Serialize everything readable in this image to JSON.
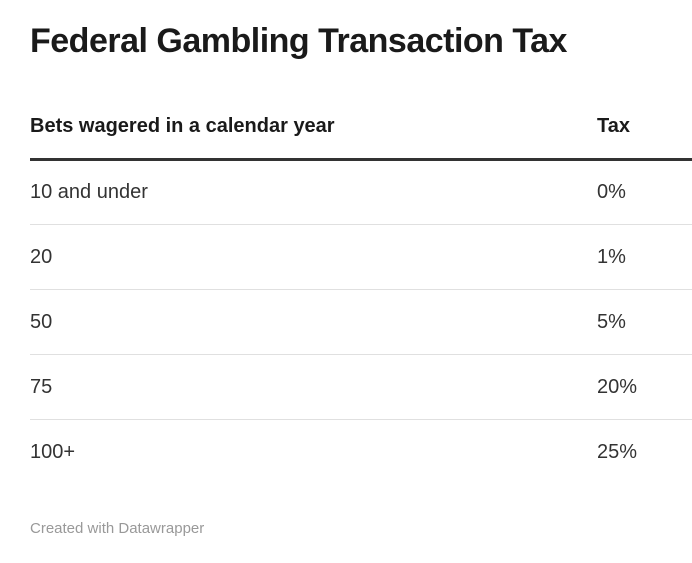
{
  "chart_data": {
    "type": "table",
    "title": "Federal Gambling Transaction Tax",
    "columns": [
      "Bets wagered in a calendar year",
      "Tax"
    ],
    "rows": [
      [
        "10 and under",
        "0%"
      ],
      [
        "20",
        "1%"
      ],
      [
        "50",
        "5%"
      ],
      [
        "75",
        "20%"
      ],
      [
        "100+",
        "25%"
      ]
    ],
    "layout_hints": {
      "tax_column_alignment": "left",
      "header_rule": "thick",
      "row_dividers": true,
      "last_row_divider": false
    }
  },
  "footer": {
    "attribution": "Created with Datawrapper"
  },
  "colors": {
    "background": "#ffffff",
    "title_text": "#1a1a1a",
    "header_text": "#1a1a1a",
    "body_text": "#333333",
    "header_rule": "#333333",
    "row_divider": "#e0e0e0",
    "footer_text": "#999999"
  }
}
